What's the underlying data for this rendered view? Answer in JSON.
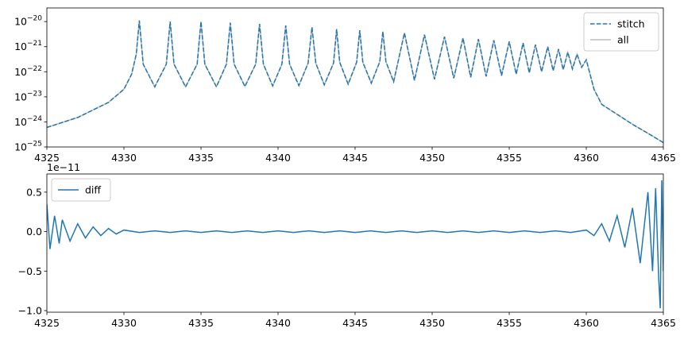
{
  "chart_data": [
    {
      "type": "line",
      "x": [
        4325,
        4327,
        4329,
        4330,
        4330.5,
        4330.8,
        4331,
        4331.25,
        4332,
        4332.75,
        4333,
        4333.25,
        4334,
        4334.75,
        4335,
        4335.25,
        4336,
        4336.65,
        4336.9,
        4337.15,
        4337.85,
        4338.55,
        4338.8,
        4339.05,
        4339.65,
        4340.25,
        4340.5,
        4340.75,
        4341.35,
        4341.95,
        4342.2,
        4342.45,
        4343,
        4343.6,
        4343.8,
        4344,
        4344.55,
        4345.1,
        4345.3,
        4345.5,
        4346.05,
        4346.6,
        4346.8,
        4347,
        4347.5,
        4348.2,
        4348.85,
        4349.5,
        4350.15,
        4350.8,
        4351.4,
        4352,
        4352.5,
        4353,
        4353.5,
        4354,
        4354.5,
        4355,
        4355.45,
        4355.9,
        4356.3,
        4356.7,
        4357.1,
        4357.5,
        4357.85,
        4358.2,
        4358.5,
        4358.8,
        4359.1,
        4359.4,
        4359.7,
        4360,
        4360.5,
        4361,
        4362,
        4363,
        4364,
        4365
      ],
      "series": [
        {
          "name": "all",
          "color": "#bbbbbb",
          "dash": false,
          "values": [
            6e-25,
            1.5e-24,
            6e-24,
            2e-23,
            8e-23,
            5e-22,
            1.1e-20,
            2e-22,
            2.5e-23,
            2e-22,
            1e-20,
            2e-22,
            2.5e-23,
            2e-22,
            1e-20,
            2e-22,
            2.5e-23,
            2e-22,
            9e-21,
            2e-22,
            2.6e-23,
            2e-22,
            8e-21,
            2e-22,
            2.7e-23,
            2e-22,
            7e-21,
            2e-22,
            2.8e-23,
            2.2e-22,
            6e-21,
            2.2e-22,
            3e-23,
            2.2e-22,
            5e-21,
            2.4e-22,
            3.2e-23,
            2.4e-22,
            4.5e-21,
            2.4e-22,
            3.5e-23,
            2.5e-22,
            4e-21,
            2.5e-22,
            4e-23,
            3.5e-21,
            4.5e-23,
            3e-21,
            5e-23,
            2.5e-21,
            5.5e-23,
            2.2e-21,
            6e-23,
            2e-21,
            6.5e-23,
            1.8e-21,
            7e-23,
            1.6e-21,
            8e-23,
            1.4e-21,
            9e-23,
            1.2e-21,
            1e-22,
            1e-21,
            1.1e-22,
            8e-22,
            1.2e-22,
            6e-22,
            1.3e-22,
            5e-22,
            1.5e-22,
            3e-22,
            2e-23,
            5e-24,
            2e-24,
            8e-25,
            3.5e-25,
            1.5e-25
          ]
        },
        {
          "name": "stitch",
          "color": "#1f77b4",
          "dash": true,
          "values": [
            6e-25,
            1.5e-24,
            6e-24,
            2e-23,
            8e-23,
            5e-22,
            1.1e-20,
            2e-22,
            2.5e-23,
            2e-22,
            1e-20,
            2e-22,
            2.5e-23,
            2e-22,
            1e-20,
            2e-22,
            2.5e-23,
            2e-22,
            9e-21,
            2e-22,
            2.6e-23,
            2e-22,
            8e-21,
            2e-22,
            2.7e-23,
            2e-22,
            7e-21,
            2e-22,
            2.8e-23,
            2.2e-22,
            6e-21,
            2.2e-22,
            3e-23,
            2.2e-22,
            5e-21,
            2.4e-22,
            3.2e-23,
            2.4e-22,
            4.5e-21,
            2.4e-22,
            3.5e-23,
            2.5e-22,
            4e-21,
            2.5e-22,
            4e-23,
            3.5e-21,
            4.5e-23,
            3e-21,
            5e-23,
            2.5e-21,
            5.5e-23,
            2.2e-21,
            6e-23,
            2e-21,
            6.5e-23,
            1.8e-21,
            7e-23,
            1.6e-21,
            8e-23,
            1.4e-21,
            9e-23,
            1.2e-21,
            1e-22,
            1e-21,
            1.1e-22,
            8e-22,
            1.2e-22,
            6e-22,
            1.3e-22,
            5e-22,
            1.5e-22,
            3e-22,
            2e-23,
            5e-24,
            2e-24,
            8e-25,
            3.5e-25,
            1.5e-25
          ]
        }
      ],
      "legend_order": [
        1,
        0
      ],
      "legend": "upper right",
      "log_y": true,
      "xlim": [
        4325,
        4365
      ],
      "xticks": [
        4325,
        4330,
        4335,
        4340,
        4345,
        4350,
        4355,
        4360,
        4365
      ],
      "ylim": [
        1e-25,
        3.5e-20
      ],
      "yticks": [
        {
          "value": 1e-25,
          "label": "10−25"
        },
        {
          "value": 1e-24,
          "label": "10−24"
        },
        {
          "value": 1e-23,
          "label": "10−23"
        },
        {
          "value": 1e-22,
          "label": "10−22"
        },
        {
          "value": 1e-21,
          "label": "10−21"
        },
        {
          "value": 1e-20,
          "label": "10−20"
        }
      ]
    },
    {
      "type": "line",
      "x": [
        4325,
        4325.2,
        4325.5,
        4325.8,
        4326,
        4326.5,
        4327,
        4327.5,
        4328,
        4328.5,
        4329,
        4329.5,
        4330,
        4331,
        4332,
        4333,
        4334,
        4335,
        4336,
        4337,
        4338,
        4339,
        4340,
        4341,
        4342,
        4343,
        4344,
        4345,
        4346,
        4347,
        4348,
        4349,
        4350,
        4351,
        4352,
        4353,
        4354,
        4355,
        4356,
        4357,
        4358,
        4359,
        4360,
        4360.5,
        4361,
        4361.5,
        4362,
        4362.5,
        4363,
        4363.5,
        4364,
        4364.3,
        4364.5,
        4364.7,
        4364.8,
        4364.9,
        4365
      ],
      "series": [
        {
          "name": "diff",
          "color": "#1f77b4",
          "dash": false,
          "values": [
            0.35,
            -0.22,
            0.2,
            -0.15,
            0.15,
            -0.12,
            0.1,
            -0.08,
            0.06,
            -0.05,
            0.04,
            -0.03,
            0.02,
            -0.01,
            0.01,
            -0.01,
            0.01,
            -0.01,
            0.01,
            -0.01,
            0.01,
            -0.01,
            0.01,
            -0.01,
            0.01,
            -0.01,
            0.01,
            -0.01,
            0.01,
            -0.01,
            0.01,
            -0.01,
            0.01,
            -0.01,
            0.01,
            -0.01,
            0.01,
            -0.01,
            0.01,
            -0.01,
            0.01,
            -0.01,
            0.02,
            -0.05,
            0.1,
            -0.12,
            0.2,
            -0.2,
            0.3,
            -0.4,
            0.5,
            -0.5,
            0.55,
            -0.6,
            -0.97,
            0.65,
            -0.5
          ]
        }
      ],
      "legend_order": [
        0
      ],
      "legend": "upper left",
      "log_y": false,
      "offset_text": "1e−11",
      "xlim": [
        4325,
        4365
      ],
      "xticks": [
        4325,
        4330,
        4335,
        4340,
        4345,
        4350,
        4355,
        4360,
        4365
      ],
      "ylim": [
        -1.02,
        0.73
      ],
      "yticks": [
        {
          "value": 0.5,
          "label": "0.5"
        },
        {
          "value": 0,
          "label": "0.0"
        },
        {
          "value": -0.5,
          "label": "−0.5"
        },
        {
          "value": -1,
          "label": "−1.0"
        }
      ]
    }
  ]
}
